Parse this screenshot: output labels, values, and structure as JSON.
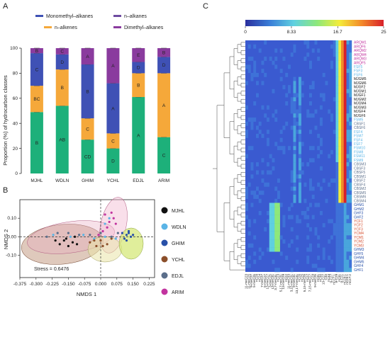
{
  "panels": {
    "a": "A",
    "b": "B",
    "c": "C"
  },
  "colors": {
    "monomethyl": "#3f51b5",
    "n_alkenes": "#f5a83a",
    "n_alkanes": "#6e4ba0",
    "dimethyl": "#8a3b9e",
    "base": "#1db07a",
    "groups": {
      "MJHL": "#111111",
      "WDLN": "#5ab4e6",
      "GHIM": "#2850a8",
      "YCHL": "#8b4f2a",
      "EDJL": "#5b6e8a",
      "ARIM": "#c2339f"
    }
  },
  "chart_data": [
    {
      "type": "bar",
      "stacked": true,
      "ylabel": "Proportion (%) of hydrocarbon classes",
      "ylim": [
        0,
        100
      ],
      "yticks": [
        "0",
        "20",
        "40",
        "60",
        "80",
        "100"
      ],
      "categories": [
        "MJHL",
        "WDLN",
        "GHIM",
        "YCHL",
        "EDJL",
        "ARIM"
      ],
      "legend": [
        {
          "key": "monomethyl",
          "label": "Monomethyl–alkanes"
        },
        {
          "key": "n_alkanes",
          "label": "n–alkanes"
        },
        {
          "key": "n_alkenes",
          "label": "n–alkenes"
        },
        {
          "key": "dimethyl",
          "label": "Dimethyl–alkanes"
        }
      ],
      "series": [
        {
          "key": "base",
          "values": [
            49,
            54,
            27,
            20,
            61,
            29
          ],
          "labels": [
            "B",
            "AB",
            "CD",
            "D",
            "A",
            "C"
          ]
        },
        {
          "key": "n_alkenes",
          "values": [
            21,
            29,
            17,
            12,
            19,
            51
          ],
          "labels": [
            "BC",
            "B",
            "C",
            "C",
            "B",
            "A"
          ]
        },
        {
          "key": "monomethyl",
          "values": [
            26,
            12,
            43,
            40,
            9,
            13
          ],
          "labels": [
            "C",
            "D",
            "B",
            "A",
            "D",
            "D"
          ]
        },
        {
          "key": "dimethyl",
          "values": [
            4,
            5,
            13,
            28,
            11,
            7
          ],
          "labels": [
            "B",
            "C",
            "A",
            "A",
            "E",
            "B"
          ]
        }
      ]
    },
    {
      "type": "scatter",
      "xlabel": "NMDS 1",
      "ylabel": "NMDS 2",
      "xlim": [
        -0.375,
        0.25
      ],
      "ylim": [
        -0.22,
        0.2
      ],
      "xticks": [
        "-0.375",
        "-0.300",
        "-0.225",
        "-0.150",
        "-0.075",
        "0.000",
        "0.075",
        "0.150",
        "0.225"
      ],
      "yticks": [
        "-0.10",
        "0.00",
        "0.10"
      ],
      "stress": "Stress = 0.6476",
      "groups": [
        {
          "name": "MJHL",
          "points": [
            [
              -0.21,
              -0.02
            ],
            [
              -0.19,
              -0.04
            ],
            [
              -0.17,
              -0.02
            ],
            [
              -0.15,
              -0.05
            ],
            [
              -0.13,
              -0.03
            ],
            [
              -0.11,
              -0.04
            ],
            [
              -0.16,
              -0.01
            ],
            [
              -0.12,
              0.0
            ]
          ]
        },
        {
          "name": "WDLN",
          "points": [
            [
              -0.22,
              0.01
            ],
            [
              -0.14,
              0.0
            ],
            [
              -0.08,
              0.01
            ],
            [
              -0.03,
              -0.01
            ],
            [
              0.02,
              0.0
            ],
            [
              0.07,
              -0.01
            ],
            [
              0.04,
              0.1
            ],
            [
              0.02,
              0.07
            ]
          ]
        },
        {
          "name": "GHIM",
          "points": [
            [
              0.1,
              0.02
            ],
            [
              0.12,
              0.01
            ],
            [
              0.14,
              0.0
            ],
            [
              0.13,
              0.03
            ],
            [
              0.11,
              -0.01
            ],
            [
              0.15,
              0.01
            ],
            [
              0.12,
              -0.02
            ],
            [
              0.13,
              0.02
            ]
          ]
        },
        {
          "name": "YCHL",
          "points": [
            [
              -0.05,
              -0.03
            ],
            [
              -0.02,
              -0.05
            ],
            [
              0.0,
              -0.02
            ],
            [
              0.03,
              -0.04
            ],
            [
              0.05,
              -0.01
            ],
            [
              0.01,
              -0.05
            ],
            [
              -0.03,
              -0.02
            ]
          ]
        },
        {
          "name": "EDJL",
          "points": [
            [
              -0.25,
              0.0
            ],
            [
              -0.2,
              0.02
            ],
            [
              -0.1,
              0.01
            ],
            [
              -0.05,
              0.01
            ],
            [
              0.0,
              0.02
            ],
            [
              0.05,
              0.0
            ],
            [
              -0.15,
              0.02
            ],
            [
              0.08,
              0.02
            ]
          ]
        },
        {
          "name": "ARIM",
          "points": [
            [
              0.02,
              0.12
            ],
            [
              0.04,
              0.08
            ],
            [
              0.05,
              0.13
            ],
            [
              0.06,
              0.1
            ],
            [
              0.03,
              0.05
            ],
            [
              0.07,
              0.07
            ],
            [
              0.01,
              0.03
            ],
            [
              -0.01,
              0.01
            ]
          ]
        }
      ]
    },
    {
      "type": "heatmap",
      "colorbar": {
        "ticks": [
          "0",
          "8.33",
          "16.7",
          "25"
        ],
        "range": [
          0,
          25
        ]
      },
      "rows": [
        {
          "label": "ARQM1",
          "color": "#c2339f"
        },
        {
          "label": "ARQF6",
          "color": "#c2339f"
        },
        {
          "label": "ARQM2",
          "color": "#c2339f"
        },
        {
          "label": "ARQM4",
          "color": "#c2339f"
        },
        {
          "label": "ARQM3",
          "color": "#c2339f"
        },
        {
          "label": "ARQF5",
          "color": "#c2339f"
        },
        {
          "label": "FSF5",
          "color": "#5ab4e6"
        },
        {
          "label": "FSF3",
          "color": "#5ab4e6"
        },
        {
          "label": "FSF6",
          "color": "#5ab4e6"
        },
        {
          "label": "MJGM5",
          "color": "#111111"
        },
        {
          "label": "MJGM6",
          "color": "#111111"
        },
        {
          "label": "MJGF2",
          "color": "#111111"
        },
        {
          "label": "MJGM1",
          "color": "#111111"
        },
        {
          "label": "MJGF1",
          "color": "#111111"
        },
        {
          "label": "MJGM2",
          "color": "#111111"
        },
        {
          "label": "MJGM4",
          "color": "#111111"
        },
        {
          "label": "MJGM3",
          "color": "#111111"
        },
        {
          "label": "MJGF4",
          "color": "#111111"
        },
        {
          "label": "MJGF6",
          "color": "#111111"
        },
        {
          "label": "FSM5",
          "color": "#5ab4e6"
        },
        {
          "label": "CBSF1",
          "color": "#5b6e8a"
        },
        {
          "label": "CBSF6",
          "color": "#5b6e8a"
        },
        {
          "label": "FSF4",
          "color": "#5ab4e6"
        },
        {
          "label": "FSM7",
          "color": "#5ab4e6"
        },
        {
          "label": "FSF4",
          "color": "#5ab4e6"
        },
        {
          "label": "FSF7",
          "color": "#5ab4e6"
        },
        {
          "label": "FSM10",
          "color": "#5ab4e6"
        },
        {
          "label": "FSM8",
          "color": "#5ab4e6"
        },
        {
          "label": "FSM11",
          "color": "#5ab4e6"
        },
        {
          "label": "FSM9",
          "color": "#5ab4e6"
        },
        {
          "label": "CBSM3",
          "color": "#5b6e8a"
        },
        {
          "label": "CBSF3",
          "color": "#5b6e8a"
        },
        {
          "label": "CBSF5",
          "color": "#5b6e8a"
        },
        {
          "label": "CBSM1",
          "color": "#5b6e8a"
        },
        {
          "label": "CBSF2",
          "color": "#5b6e8a"
        },
        {
          "label": "CBSF4",
          "color": "#5b6e8a"
        },
        {
          "label": "CBSM2",
          "color": "#5b6e8a"
        },
        {
          "label": "CBSM5",
          "color": "#5b6e8a"
        },
        {
          "label": "CBSM6",
          "color": "#5b6e8a"
        },
        {
          "label": "CBSM4",
          "color": "#5b6e8a"
        },
        {
          "label": "GHM1",
          "color": "#2850a8"
        },
        {
          "label": "GHM2",
          "color": "#2850a8"
        },
        {
          "label": "GHF3",
          "color": "#2850a8"
        },
        {
          "label": "GHF2",
          "color": "#2850a8"
        },
        {
          "label": "YCF1",
          "color": "#d44a2a"
        },
        {
          "label": "YCF2",
          "color": "#d44a2a"
        },
        {
          "label": "YCF3",
          "color": "#d44a2a"
        },
        {
          "label": "YCM4",
          "color": "#d44a2a"
        },
        {
          "label": "YCM1",
          "color": "#d44a2a"
        },
        {
          "label": "YCM2",
          "color": "#d44a2a"
        },
        {
          "label": "YCM3",
          "color": "#d44a2a"
        },
        {
          "label": "GHM3",
          "color": "#2850a8"
        },
        {
          "label": "GHF5",
          "color": "#2850a8"
        },
        {
          "label": "GHM4",
          "color": "#2850a8"
        },
        {
          "label": "GHM5",
          "color": "#2850a8"
        },
        {
          "label": "GHF4",
          "color": "#2850a8"
        },
        {
          "label": "GHF1",
          "color": "#2850a8"
        }
      ],
      "columns": [
        "11-meC23",
        "11-meC25",
        "9-meC27",
        "5-meC25",
        "nC28",
        "nC24",
        "7-meC27",
        "5-meC27",
        "13-meC27",
        "3-meC25",
        "13-meC31",
        "3,7-meC31",
        "nC23",
        "5,17-meC31",
        "13-meC29",
        "nC22",
        "11-meC33",
        "3,15-meC31",
        "9-meC31",
        "13,17-meC31",
        "nC26",
        "nC25",
        "5,15-meC25",
        "nC27",
        "7,15-meC27",
        "nC29",
        "9-meC25",
        "nC31",
        "nC30",
        "13-C27",
        "C33",
        "nC33",
        "9-C27",
        "nC27:1",
        "9-C29",
        "nC31",
        "9-C21",
        "nC29:1",
        "nC25:1",
        "nC27:2"
      ]
    }
  ]
}
